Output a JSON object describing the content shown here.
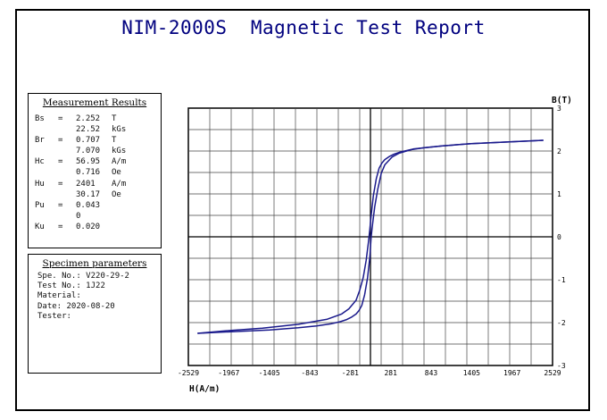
{
  "title": "NIM-2000S  Magnetic Test Report",
  "measurement": {
    "heading": "Measurement Results",
    "rows": [
      {
        "name": "Bs",
        "eq": "=",
        "value": "2.252",
        "unit": "T"
      },
      {
        "name": "",
        "eq": "",
        "value": "22.52",
        "unit": "kGs"
      },
      {
        "name": "Br",
        "eq": "=",
        "value": "0.707",
        "unit": "T"
      },
      {
        "name": "",
        "eq": "",
        "value": "7.070",
        "unit": "kGs"
      },
      {
        "name": "Hc",
        "eq": "=",
        "value": "56.95",
        "unit": "A/m"
      },
      {
        "name": "",
        "eq": "",
        "value": "0.716",
        "unit": "Oe"
      },
      {
        "name": "Hu",
        "eq": "=",
        "value": "2401",
        "unit": "A/m"
      },
      {
        "name": "",
        "eq": "",
        "value": "30.17",
        "unit": "Oe"
      },
      {
        "name": "Pu",
        "eq": "=",
        "value": "0.043",
        "unit": ""
      },
      {
        "name": "",
        "eq": "",
        "value": "0",
        "unit": ""
      },
      {
        "name": "Ku",
        "eq": "=",
        "value": "0.020",
        "unit": ""
      }
    ]
  },
  "specimen": {
    "heading": "Specimen parameters",
    "rows": [
      "Spe. No.: V220-29-2",
      "Test No.: 1J22",
      "Material:",
      "Date: 2020-08-20",
      "Tester:"
    ]
  },
  "chart_data": {
    "type": "line",
    "title": "",
    "xlabel": "H(A/m)",
    "ylabel": "B(T)",
    "xlim": [
      -2529,
      2529
    ],
    "ylim": [
      -3,
      3
    ],
    "xticks": [
      "-2529",
      "-1967",
      "-1405",
      "-843",
      "-281",
      "281",
      "843",
      "1405",
      "1967",
      "2529"
    ],
    "yticks": [
      "3",
      "2",
      "1",
      "0",
      "-1",
      "-2",
      "-3"
    ],
    "grid": true,
    "color": "#1a1a8c",
    "series": [
      {
        "x": [
          -2401,
          -2000,
          -1500,
          -1000,
          -600,
          -400,
          -300,
          -200,
          -150,
          -100,
          -60,
          -30,
          -10,
          10,
          40,
          80,
          120,
          160,
          200,
          260,
          330,
          420,
          550,
          750,
          1000,
          1400,
          1900,
          2401
        ],
        "y": [
          -2.25,
          -2.19,
          -2.13,
          -2.04,
          -1.92,
          -1.8,
          -1.68,
          -1.48,
          -1.25,
          -0.95,
          -0.55,
          -0.15,
          0.15,
          0.5,
          0.95,
          1.35,
          1.6,
          1.72,
          1.8,
          1.87,
          1.93,
          1.98,
          2.03,
          2.08,
          2.12,
          2.17,
          2.21,
          2.25
        ]
      },
      {
        "x": [
          2401,
          1900,
          1400,
          1000,
          600,
          400,
          300,
          200,
          150,
          100,
          60,
          30,
          10,
          -10,
          -40,
          -80,
          -120,
          -160,
          -200,
          -260,
          -330,
          -420,
          -550,
          -750,
          -1000,
          -1400,
          -1900,
          -2401
        ],
        "y": [
          2.25,
          2.21,
          2.17,
          2.12,
          2.05,
          1.95,
          1.86,
          1.68,
          1.48,
          1.1,
          0.7,
          0.3,
          0.0,
          -0.5,
          -0.95,
          -1.35,
          -1.6,
          -1.72,
          -1.8,
          -1.87,
          -1.93,
          -1.98,
          -2.03,
          -2.08,
          -2.12,
          -2.17,
          -2.21,
          -2.25
        ]
      }
    ]
  }
}
